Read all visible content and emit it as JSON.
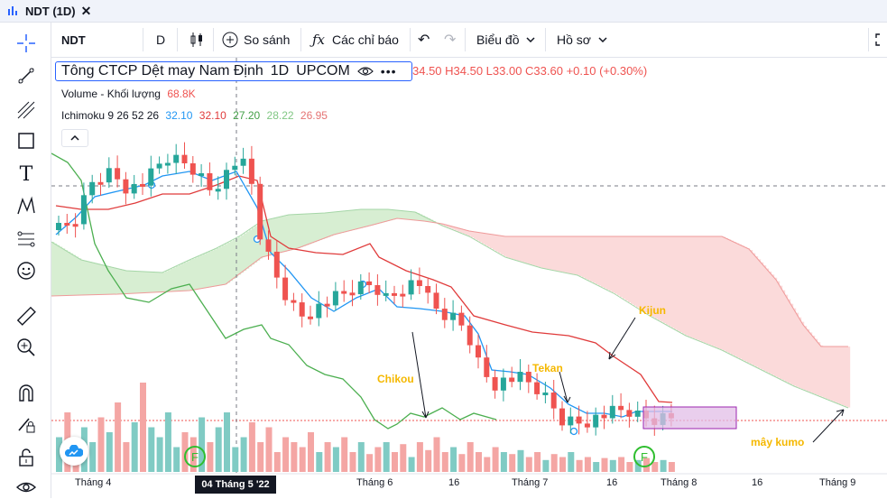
{
  "tab": {
    "title": "NDT (1D)"
  },
  "toolbar": {
    "symbol": "NDT",
    "interval": "D",
    "compare_label": "So sánh",
    "indicators_label": "Các chỉ báo",
    "chart_type_label": "Biểu đồ",
    "profile_label": "Hồ sơ"
  },
  "legend": {
    "name": "Tông CTCP Dệt may Nam Định",
    "interval": "1D",
    "exchange": "UPCOM",
    "ohlc": "34.50 H34.50 L33.00 C33.60 +0.10 (+0.30%)",
    "volume_name": "Volume - Khối lượng",
    "volume_value": "68.8K",
    "ichimoku_name": "Ichimoku 9 26 52 26",
    "ich_v1": "32.10",
    "ich_v2": "32.10",
    "ich_v3": "27.20",
    "ich_v4": "28.22",
    "ich_v5": "26.95"
  },
  "annotations": {
    "kijun": "Kijun",
    "tekan": "Tekan",
    "chikou": "Chikou",
    "kumo": "mây kumo"
  },
  "xaxis": {
    "labels": [
      "Tháng 4",
      "Tháng 6",
      "16",
      "Tháng 7",
      "16",
      "Tháng 8",
      "16",
      "Tháng 9"
    ],
    "crosshair_date": "04 Tháng 5 '22"
  },
  "markers": {
    "event": "F"
  },
  "colors": {
    "up": "#26a69a",
    "down": "#ef5350",
    "tenkan": "#2196f3",
    "kijun": "#e03b3b",
    "chikou": "#4caf50",
    "kumo_bear": "#fbdada",
    "kumo_bull": "#d7eed2",
    "highlight": "#e1bee7",
    "annotation": "#f5b800"
  }
}
